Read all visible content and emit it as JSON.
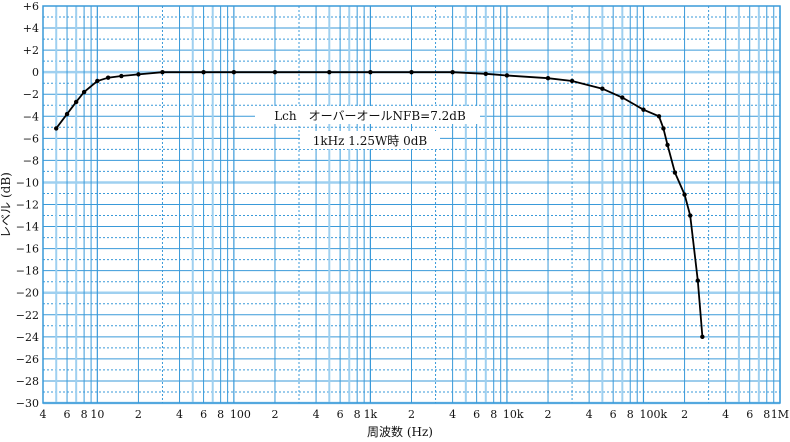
{
  "chart_data": {
    "type": "line",
    "title": "",
    "xlabel": "周波数 (Hz)",
    "ylabel": "レベル (dB)",
    "xscale": "log",
    "xlim": [
      4,
      1000000
    ],
    "ylim": [
      -30,
      6
    ],
    "grid": true,
    "x_tick_labels": [
      {
        "v": 4,
        "t": "4"
      },
      {
        "v": 6,
        "t": "6"
      },
      {
        "v": 8,
        "t": "8"
      },
      {
        "v": 10,
        "t": "10"
      },
      {
        "v": 20,
        "t": "2"
      },
      {
        "v": 40,
        "t": "4"
      },
      {
        "v": 60,
        "t": "6"
      },
      {
        "v": 80,
        "t": "8"
      },
      {
        "v": 100,
        "t": "100"
      },
      {
        "v": 200,
        "t": "2"
      },
      {
        "v": 400,
        "t": "4"
      },
      {
        "v": 600,
        "t": "6"
      },
      {
        "v": 800,
        "t": "8"
      },
      {
        "v": 1000,
        "t": "1k"
      },
      {
        "v": 2000,
        "t": "2"
      },
      {
        "v": 4000,
        "t": "4"
      },
      {
        "v": 6000,
        "t": "6"
      },
      {
        "v": 8000,
        "t": "8"
      },
      {
        "v": 10000,
        "t": "10k"
      },
      {
        "v": 20000,
        "t": "2"
      },
      {
        "v": 40000,
        "t": "4"
      },
      {
        "v": 60000,
        "t": "6"
      },
      {
        "v": 80000,
        "t": "8"
      },
      {
        "v": 100000,
        "t": "100k"
      },
      {
        "v": 200000,
        "t": "2"
      },
      {
        "v": 400000,
        "t": "4"
      },
      {
        "v": 600000,
        "t": "6"
      },
      {
        "v": 800000,
        "t": "8"
      },
      {
        "v": 1000000,
        "t": "1M"
      }
    ],
    "y_tick_labels": [
      {
        "v": 6,
        "t": "+6"
      },
      {
        "v": 4,
        "t": "+4"
      },
      {
        "v": 2,
        "t": "+2"
      },
      {
        "v": 0,
        "t": "0"
      },
      {
        "v": -2,
        "t": "−2"
      },
      {
        "v": -4,
        "t": "−4"
      },
      {
        "v": -6,
        "t": "−6"
      },
      {
        "v": -8,
        "t": "−8"
      },
      {
        "v": -10,
        "t": "−10"
      },
      {
        "v": -12,
        "t": "−12"
      },
      {
        "v": -14,
        "t": "−14"
      },
      {
        "v": -16,
        "t": "−16"
      },
      {
        "v": -18,
        "t": "−18"
      },
      {
        "v": -20,
        "t": "−20"
      },
      {
        "v": -22,
        "t": "−22"
      },
      {
        "v": -24,
        "t": "−24"
      },
      {
        "v": -26,
        "t": "−26"
      },
      {
        "v": -28,
        "t": "−28"
      },
      {
        "v": -30,
        "t": "−30"
      }
    ],
    "annotations": [
      "Lch　オーバーオールNFB=7.2dB",
      "1kHz  1.25W時 0dB"
    ],
    "series": [
      {
        "name": "Lch",
        "color": "#000000",
        "x": [
          5,
          6,
          7,
          8,
          10,
          12,
          15,
          20,
          30,
          60,
          100,
          200,
          500,
          1000,
          2000,
          4000,
          7000,
          10000,
          20000,
          30000,
          50000,
          70000,
          100000,
          130000,
          140000,
          150000,
          170000,
          200000,
          220000,
          250000,
          270000
        ],
        "y": [
          -5.1,
          -3.8,
          -2.7,
          -1.8,
          -0.8,
          -0.5,
          -0.35,
          -0.2,
          0,
          0,
          0,
          0,
          0,
          0,
          0,
          0,
          -0.15,
          -0.3,
          -0.55,
          -0.8,
          -1.5,
          -2.3,
          -3.4,
          -4.0,
          -5.1,
          -6.6,
          -9.1,
          -11.1,
          -13.0,
          -18.9,
          -24.0
        ]
      }
    ],
    "colors": {
      "grid": "#3a9ad9",
      "grid_light": "#9fd0f0",
      "line": "#000000"
    }
  }
}
